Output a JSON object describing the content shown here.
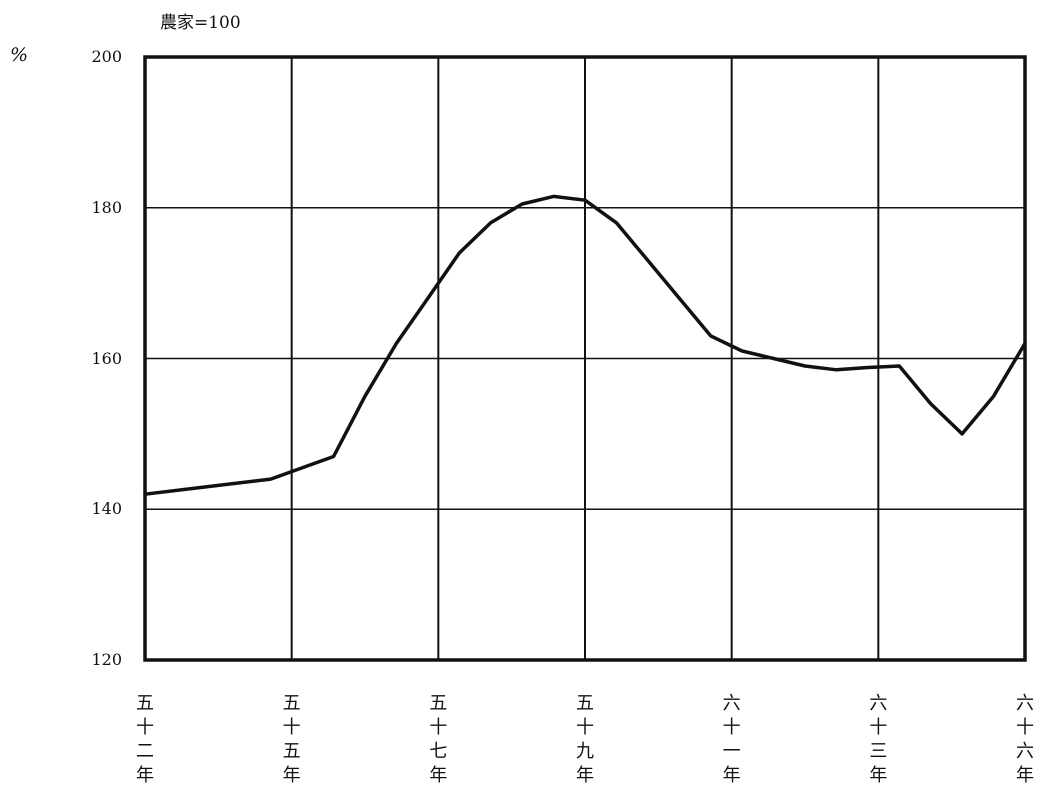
{
  "chart_data": {
    "type": "line",
    "title": "農家=100",
    "unit": "%",
    "ylim": [
      120,
      200
    ],
    "yticks": [
      200,
      180,
      160,
      140,
      120
    ],
    "grid": true,
    "categories": [
      "五十二年",
      "五十五年",
      "五十七年",
      "五十九年",
      "六十一年",
      "六十三年",
      "六十六年"
    ],
    "series": [
      {
        "x": [
          52,
          53,
          54,
          55,
          55.5,
          56,
          56.5,
          57,
          57.5,
          58,
          58.5,
          59,
          59.5,
          60,
          60.5,
          61,
          61.5,
          62,
          62.5,
          63,
          63.5,
          64,
          64.5,
          65,
          65.5,
          66
        ],
        "values": [
          142,
          143,
          144,
          147,
          155,
          162,
          168,
          174,
          178,
          180.5,
          181.5,
          181,
          178,
          173,
          168,
          163,
          161,
          160,
          159,
          158.5,
          158.8,
          159,
          154,
          150,
          155,
          162
        ]
      }
    ]
  }
}
